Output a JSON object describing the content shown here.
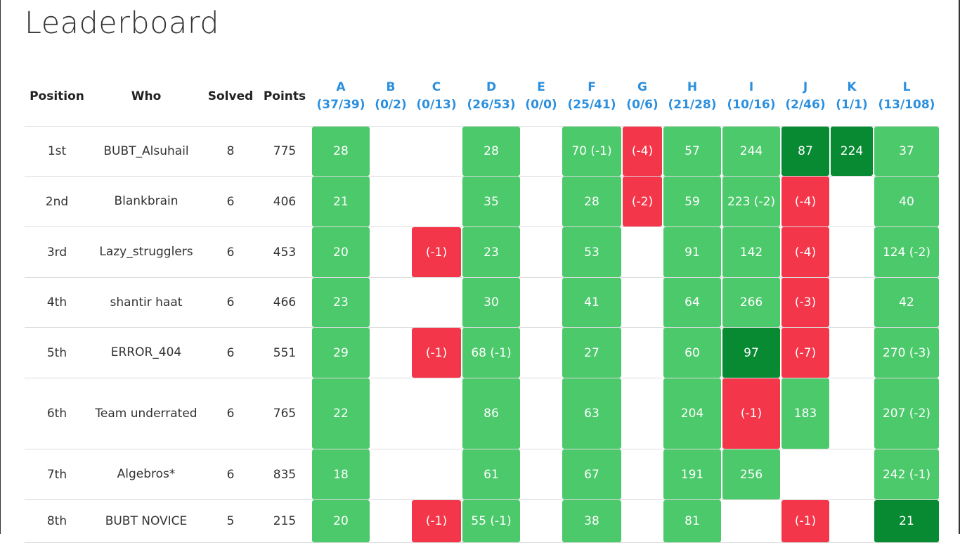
{
  "page": {
    "title": "Leaderboard"
  },
  "colors": {
    "accepted": "#4cc96b",
    "first_solve": "#078a32",
    "wrong": "#f4364a",
    "problem_header": "#2b8fde"
  },
  "headers": {
    "position": "Position",
    "who": "Who",
    "solved": "Solved",
    "points": "Points"
  },
  "problems": [
    {
      "letter": "A",
      "stats": "(37/39)"
    },
    {
      "letter": "B",
      "stats": "(0/2)"
    },
    {
      "letter": "C",
      "stats": "(0/13)"
    },
    {
      "letter": "D",
      "stats": "(26/53)"
    },
    {
      "letter": "E",
      "stats": "(0/0)"
    },
    {
      "letter": "F",
      "stats": "(25/41)"
    },
    {
      "letter": "G",
      "stats": "(0/6)"
    },
    {
      "letter": "H",
      "stats": "(21/28)"
    },
    {
      "letter": "I",
      "stats": "(10/16)"
    },
    {
      "letter": "J",
      "stats": "(2/46)"
    },
    {
      "letter": "K",
      "stats": "(1/1)"
    },
    {
      "letter": "L",
      "stats": "(13/108)"
    }
  ],
  "rows": [
    {
      "position": "1st",
      "who": "BUBT_Alsuhail",
      "solved": "8",
      "points": "775",
      "cells": [
        {
          "text": "28",
          "status": "green"
        },
        {
          "text": "",
          "status": "empty"
        },
        {
          "text": "",
          "status": "empty"
        },
        {
          "text": "28",
          "status": "green"
        },
        {
          "text": "",
          "status": "empty"
        },
        {
          "text": "70 (-1)",
          "status": "green"
        },
        {
          "text": "(-4)",
          "status": "red"
        },
        {
          "text": "57",
          "status": "green"
        },
        {
          "text": "244",
          "status": "green"
        },
        {
          "text": "87",
          "status": "dgreen"
        },
        {
          "text": "224",
          "status": "dgreen"
        },
        {
          "text": "37",
          "status": "green"
        }
      ]
    },
    {
      "position": "2nd",
      "who": "Blankbrain",
      "solved": "6",
      "points": "406",
      "cells": [
        {
          "text": "21",
          "status": "green"
        },
        {
          "text": "",
          "status": "empty"
        },
        {
          "text": "",
          "status": "empty"
        },
        {
          "text": "35",
          "status": "green"
        },
        {
          "text": "",
          "status": "empty"
        },
        {
          "text": "28",
          "status": "green"
        },
        {
          "text": "(-2)",
          "status": "red"
        },
        {
          "text": "59",
          "status": "green"
        },
        {
          "text": "223 (-2)",
          "status": "green"
        },
        {
          "text": "(-4)",
          "status": "red"
        },
        {
          "text": "",
          "status": "empty"
        },
        {
          "text": "40",
          "status": "green"
        }
      ]
    },
    {
      "position": "3rd",
      "who": "Lazy_strugglers",
      "solved": "6",
      "points": "453",
      "cells": [
        {
          "text": "20",
          "status": "green"
        },
        {
          "text": "",
          "status": "empty"
        },
        {
          "text": "(-1)",
          "status": "red"
        },
        {
          "text": "23",
          "status": "green"
        },
        {
          "text": "",
          "status": "empty"
        },
        {
          "text": "53",
          "status": "green"
        },
        {
          "text": "",
          "status": "empty"
        },
        {
          "text": "91",
          "status": "green"
        },
        {
          "text": "142",
          "status": "green"
        },
        {
          "text": "(-4)",
          "status": "red"
        },
        {
          "text": "",
          "status": "empty"
        },
        {
          "text": "124 (-2)",
          "status": "green"
        }
      ]
    },
    {
      "position": "4th",
      "who": "shantir haat",
      "solved": "6",
      "points": "466",
      "cells": [
        {
          "text": "23",
          "status": "green"
        },
        {
          "text": "",
          "status": "empty"
        },
        {
          "text": "",
          "status": "empty"
        },
        {
          "text": "30",
          "status": "green"
        },
        {
          "text": "",
          "status": "empty"
        },
        {
          "text": "41",
          "status": "green"
        },
        {
          "text": "",
          "status": "empty"
        },
        {
          "text": "64",
          "status": "green"
        },
        {
          "text": "266",
          "status": "green"
        },
        {
          "text": "(-3)",
          "status": "red"
        },
        {
          "text": "",
          "status": "empty"
        },
        {
          "text": "42",
          "status": "green"
        }
      ]
    },
    {
      "position": "5th",
      "who": "ERROR_404",
      "solved": "6",
      "points": "551",
      "cells": [
        {
          "text": "29",
          "status": "green"
        },
        {
          "text": "",
          "status": "empty"
        },
        {
          "text": "(-1)",
          "status": "red"
        },
        {
          "text": "68 (-1)",
          "status": "green"
        },
        {
          "text": "",
          "status": "empty"
        },
        {
          "text": "27",
          "status": "green"
        },
        {
          "text": "",
          "status": "empty"
        },
        {
          "text": "60",
          "status": "green"
        },
        {
          "text": "97",
          "status": "dgreen"
        },
        {
          "text": "(-7)",
          "status": "red"
        },
        {
          "text": "",
          "status": "empty"
        },
        {
          "text": "270 (-3)",
          "status": "green"
        }
      ]
    },
    {
      "position": "6th",
      "who": "Team underrated",
      "solved": "6",
      "points": "765",
      "cells": [
        {
          "text": "22",
          "status": "green"
        },
        {
          "text": "",
          "status": "empty"
        },
        {
          "text": "",
          "status": "empty"
        },
        {
          "text": "86",
          "status": "green"
        },
        {
          "text": "",
          "status": "empty"
        },
        {
          "text": "63",
          "status": "green"
        },
        {
          "text": "",
          "status": "empty"
        },
        {
          "text": "204",
          "status": "green"
        },
        {
          "text": "(-1)",
          "status": "red"
        },
        {
          "text": "183",
          "status": "green"
        },
        {
          "text": "",
          "status": "empty"
        },
        {
          "text": "207 (-2)",
          "status": "green"
        }
      ]
    },
    {
      "position": "7th",
      "who": "Algebros*",
      "solved": "6",
      "points": "835",
      "cells": [
        {
          "text": "18",
          "status": "green"
        },
        {
          "text": "",
          "status": "empty"
        },
        {
          "text": "",
          "status": "empty"
        },
        {
          "text": "61",
          "status": "green"
        },
        {
          "text": "",
          "status": "empty"
        },
        {
          "text": "67",
          "status": "green"
        },
        {
          "text": "",
          "status": "empty"
        },
        {
          "text": "191",
          "status": "green"
        },
        {
          "text": "256",
          "status": "green"
        },
        {
          "text": "",
          "status": "empty"
        },
        {
          "text": "",
          "status": "empty"
        },
        {
          "text": "242 (-1)",
          "status": "green"
        }
      ]
    },
    {
      "position": "8th",
      "who": "BUBT NOVICE",
      "solved": "5",
      "points": "215",
      "cells": [
        {
          "text": "20",
          "status": "green"
        },
        {
          "text": "",
          "status": "empty"
        },
        {
          "text": "(-1)",
          "status": "red"
        },
        {
          "text": "55 (-1)",
          "status": "green"
        },
        {
          "text": "",
          "status": "empty"
        },
        {
          "text": "38",
          "status": "green"
        },
        {
          "text": "",
          "status": "empty"
        },
        {
          "text": "81",
          "status": "green"
        },
        {
          "text": "",
          "status": "empty"
        },
        {
          "text": "(-1)",
          "status": "red"
        },
        {
          "text": "",
          "status": "empty"
        },
        {
          "text": "21",
          "status": "dgreen"
        }
      ]
    }
  ]
}
